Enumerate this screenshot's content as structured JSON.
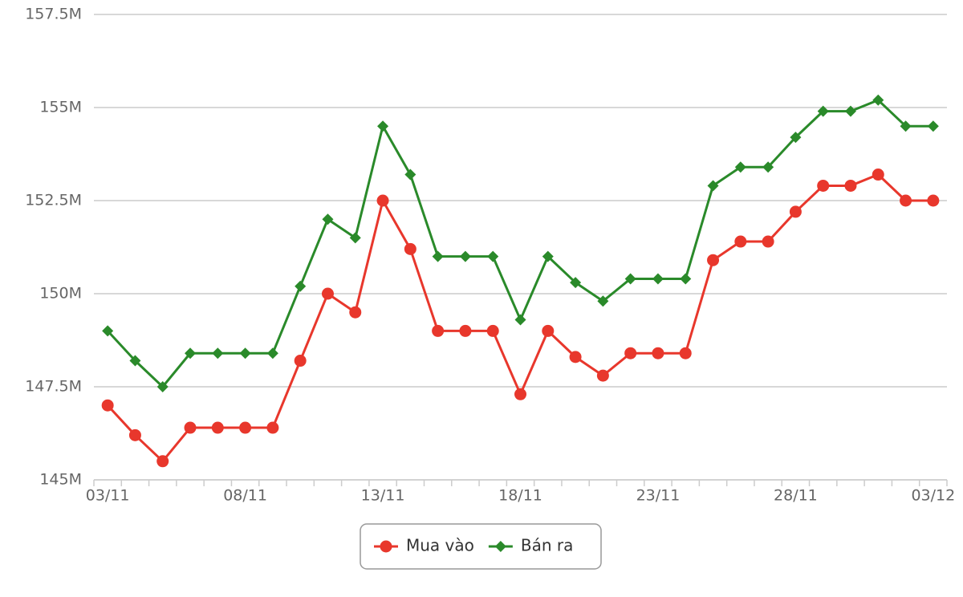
{
  "chart_data": {
    "type": "line",
    "categories": [
      "03/11",
      null,
      null,
      null,
      null,
      "08/11",
      null,
      null,
      null,
      null,
      "13/11",
      null,
      null,
      null,
      null,
      "18/11",
      null,
      null,
      null,
      null,
      "23/11",
      null,
      null,
      null,
      null,
      "28/11",
      null,
      null,
      null,
      null,
      "03/12"
    ],
    "series": [
      {
        "name": "Mua vào",
        "color": "#e8372c",
        "marker": "circle",
        "values": [
          147.0,
          146.2,
          145.5,
          146.4,
          146.4,
          146.4,
          146.4,
          148.2,
          150.0,
          149.5,
          152.5,
          151.2,
          149.0,
          149.0,
          149.0,
          147.3,
          149.0,
          148.3,
          147.8,
          148.4,
          148.4,
          148.4,
          150.9,
          151.4,
          151.4,
          152.2,
          152.9,
          152.9,
          153.2,
          152.5,
          152.5
        ]
      },
      {
        "name": "Bán ra",
        "color": "#2a8a2a",
        "marker": "diamond",
        "values": [
          149.0,
          148.2,
          147.5,
          148.4,
          148.4,
          148.4,
          148.4,
          150.2,
          152.0,
          151.5,
          154.5,
          153.2,
          151.0,
          151.0,
          151.0,
          149.3,
          151.0,
          150.3,
          149.8,
          150.4,
          150.4,
          150.4,
          152.9,
          153.4,
          153.4,
          154.2,
          154.9,
          154.9,
          155.2,
          154.5,
          154.5
        ]
      }
    ],
    "ylim": [
      145,
      157.5
    ],
    "yticks": [
      {
        "value": 145,
        "label": "145M"
      },
      {
        "value": 147.5,
        "label": "147.5M"
      },
      {
        "value": 150,
        "label": "150M"
      },
      {
        "value": 152.5,
        "label": "152.5M"
      },
      {
        "value": 155,
        "label": "155M"
      },
      {
        "value": 157.5,
        "label": "157.5M"
      }
    ],
    "grid": true
  }
}
